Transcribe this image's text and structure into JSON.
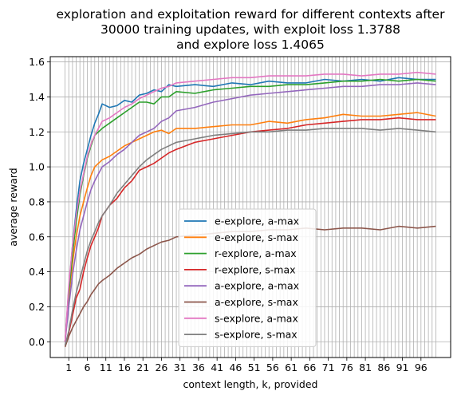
{
  "chart_data": {
    "type": "line",
    "title_lines": [
      "exploration and exploitation reward for different contexts after",
      "30000 training updates, with exploit loss 1.3788",
      "and explore loss 1.4065"
    ],
    "xlabel": "context length, k, provided",
    "ylabel": "average reward",
    "xlim": [
      -4,
      104
    ],
    "ylim": [
      -0.09,
      1.63
    ],
    "xticks": [
      1,
      6,
      11,
      16,
      21,
      26,
      31,
      36,
      41,
      46,
      51,
      56,
      61,
      66,
      71,
      76,
      81,
      86,
      91,
      96
    ],
    "yticks": [
      0.0,
      0.2,
      0.4,
      0.6,
      0.8,
      1.0,
      1.2,
      1.4,
      1.6
    ],
    "ytick_labels": [
      "0.0",
      "0.2",
      "0.4",
      "0.6",
      "0.8",
      "1.0",
      "1.2",
      "1.4",
      "1.6"
    ],
    "grid": true,
    "legend_position": "lower-center",
    "series": [
      {
        "name": "e-explore, a-max",
        "color": "#1f77b4",
        "points": [
          [
            0,
            0.0
          ],
          [
            1,
            0.3
          ],
          [
            2,
            0.55
          ],
          [
            3,
            0.75
          ],
          [
            4,
            0.92
          ],
          [
            5,
            1.02
          ],
          [
            6,
            1.1
          ],
          [
            7,
            1.18
          ],
          [
            8,
            1.25
          ],
          [
            9,
            1.3
          ],
          [
            10,
            1.36
          ],
          [
            12,
            1.34
          ],
          [
            14,
            1.35
          ],
          [
            16,
            1.38
          ],
          [
            18,
            1.37
          ],
          [
            20,
            1.41
          ],
          [
            22,
            1.42
          ],
          [
            24,
            1.44
          ],
          [
            26,
            1.43
          ],
          [
            28,
            1.47
          ],
          [
            30,
            1.46
          ],
          [
            35,
            1.47
          ],
          [
            40,
            1.46
          ],
          [
            45,
            1.48
          ],
          [
            50,
            1.47
          ],
          [
            55,
            1.49
          ],
          [
            60,
            1.48
          ],
          [
            65,
            1.48
          ],
          [
            70,
            1.5
          ],
          [
            75,
            1.49
          ],
          [
            80,
            1.5
          ],
          [
            85,
            1.49
          ],
          [
            90,
            1.51
          ],
          [
            95,
            1.5
          ],
          [
            100,
            1.5
          ]
        ]
      },
      {
        "name": "e-explore, s-max",
        "color": "#ff7f0e",
        "points": [
          [
            0,
            0.0
          ],
          [
            1,
            0.25
          ],
          [
            2,
            0.45
          ],
          [
            3,
            0.6
          ],
          [
            4,
            0.72
          ],
          [
            5,
            0.8
          ],
          [
            6,
            0.88
          ],
          [
            7,
            0.95
          ],
          [
            8,
            1.0
          ],
          [
            9,
            1.02
          ],
          [
            10,
            1.04
          ],
          [
            12,
            1.06
          ],
          [
            14,
            1.09
          ],
          [
            16,
            1.12
          ],
          [
            18,
            1.14
          ],
          [
            20,
            1.16
          ],
          [
            22,
            1.18
          ],
          [
            24,
            1.2
          ],
          [
            26,
            1.21
          ],
          [
            28,
            1.19
          ],
          [
            30,
            1.22
          ],
          [
            35,
            1.22
          ],
          [
            40,
            1.23
          ],
          [
            45,
            1.24
          ],
          [
            50,
            1.24
          ],
          [
            55,
            1.26
          ],
          [
            60,
            1.25
          ],
          [
            65,
            1.27
          ],
          [
            70,
            1.28
          ],
          [
            75,
            1.3
          ],
          [
            80,
            1.29
          ],
          [
            85,
            1.29
          ],
          [
            90,
            1.3
          ],
          [
            95,
            1.31
          ],
          [
            100,
            1.29
          ]
        ]
      },
      {
        "name": "r-explore, a-max",
        "color": "#2ca02c",
        "points": [
          [
            0,
            0.0
          ],
          [
            1,
            0.28
          ],
          [
            2,
            0.5
          ],
          [
            3,
            0.68
          ],
          [
            4,
            0.84
          ],
          [
            5,
            0.95
          ],
          [
            6,
            1.05
          ],
          [
            7,
            1.12
          ],
          [
            8,
            1.18
          ],
          [
            9,
            1.2
          ],
          [
            10,
            1.22
          ],
          [
            12,
            1.25
          ],
          [
            14,
            1.28
          ],
          [
            16,
            1.31
          ],
          [
            18,
            1.34
          ],
          [
            20,
            1.37
          ],
          [
            22,
            1.37
          ],
          [
            24,
            1.36
          ],
          [
            26,
            1.4
          ],
          [
            28,
            1.4
          ],
          [
            30,
            1.43
          ],
          [
            35,
            1.42
          ],
          [
            40,
            1.44
          ],
          [
            45,
            1.45
          ],
          [
            50,
            1.46
          ],
          [
            55,
            1.46
          ],
          [
            60,
            1.47
          ],
          [
            65,
            1.47
          ],
          [
            70,
            1.48
          ],
          [
            75,
            1.49
          ],
          [
            80,
            1.49
          ],
          [
            85,
            1.5
          ],
          [
            90,
            1.49
          ],
          [
            95,
            1.5
          ],
          [
            100,
            1.49
          ]
        ]
      },
      {
        "name": "r-explore, s-max",
        "color": "#d62728",
        "points": [
          [
            0,
            -0.02
          ],
          [
            1,
            0.05
          ],
          [
            2,
            0.15
          ],
          [
            3,
            0.25
          ],
          [
            4,
            0.3
          ],
          [
            5,
            0.4
          ],
          [
            6,
            0.48
          ],
          [
            7,
            0.55
          ],
          [
            8,
            0.6
          ],
          [
            9,
            0.65
          ],
          [
            10,
            0.72
          ],
          [
            12,
            0.78
          ],
          [
            14,
            0.82
          ],
          [
            16,
            0.88
          ],
          [
            18,
            0.92
          ],
          [
            20,
            0.98
          ],
          [
            22,
            1.0
          ],
          [
            24,
            1.02
          ],
          [
            26,
            1.05
          ],
          [
            28,
            1.08
          ],
          [
            30,
            1.1
          ],
          [
            35,
            1.14
          ],
          [
            40,
            1.16
          ],
          [
            45,
            1.18
          ],
          [
            50,
            1.2
          ],
          [
            55,
            1.21
          ],
          [
            60,
            1.22
          ],
          [
            65,
            1.24
          ],
          [
            70,
            1.25
          ],
          [
            75,
            1.26
          ],
          [
            80,
            1.27
          ],
          [
            85,
            1.27
          ],
          [
            90,
            1.28
          ],
          [
            95,
            1.27
          ],
          [
            100,
            1.27
          ]
        ]
      },
      {
        "name": "a-explore, a-max",
        "color": "#9467bd",
        "points": [
          [
            0,
            0.0
          ],
          [
            1,
            0.2
          ],
          [
            2,
            0.38
          ],
          [
            3,
            0.52
          ],
          [
            4,
            0.64
          ],
          [
            5,
            0.72
          ],
          [
            6,
            0.8
          ],
          [
            7,
            0.87
          ],
          [
            8,
            0.92
          ],
          [
            9,
            0.96
          ],
          [
            10,
            1.0
          ],
          [
            12,
            1.03
          ],
          [
            14,
            1.07
          ],
          [
            16,
            1.1
          ],
          [
            18,
            1.14
          ],
          [
            20,
            1.18
          ],
          [
            22,
            1.2
          ],
          [
            24,
            1.22
          ],
          [
            26,
            1.26
          ],
          [
            28,
            1.28
          ],
          [
            30,
            1.32
          ],
          [
            35,
            1.34
          ],
          [
            40,
            1.37
          ],
          [
            45,
            1.39
          ],
          [
            50,
            1.41
          ],
          [
            55,
            1.42
          ],
          [
            60,
            1.43
          ],
          [
            65,
            1.44
          ],
          [
            70,
            1.45
          ],
          [
            75,
            1.46
          ],
          [
            80,
            1.46
          ],
          [
            85,
            1.47
          ],
          [
            90,
            1.47
          ],
          [
            95,
            1.48
          ],
          [
            100,
            1.47
          ]
        ]
      },
      {
        "name": "a-explore, s-max",
        "color": "#8c564b",
        "points": [
          [
            0,
            -0.03
          ],
          [
            1,
            0.03
          ],
          [
            2,
            0.08
          ],
          [
            3,
            0.12
          ],
          [
            4,
            0.16
          ],
          [
            5,
            0.2
          ],
          [
            6,
            0.23
          ],
          [
            7,
            0.27
          ],
          [
            8,
            0.3
          ],
          [
            9,
            0.33
          ],
          [
            10,
            0.35
          ],
          [
            12,
            0.38
          ],
          [
            14,
            0.42
          ],
          [
            16,
            0.45
          ],
          [
            18,
            0.48
          ],
          [
            20,
            0.5
          ],
          [
            22,
            0.53
          ],
          [
            24,
            0.55
          ],
          [
            26,
            0.57
          ],
          [
            28,
            0.58
          ],
          [
            30,
            0.6
          ],
          [
            35,
            0.61
          ],
          [
            40,
            0.62
          ],
          [
            45,
            0.63
          ],
          [
            50,
            0.63
          ],
          [
            55,
            0.64
          ],
          [
            60,
            0.64
          ],
          [
            65,
            0.65
          ],
          [
            70,
            0.64
          ],
          [
            75,
            0.65
          ],
          [
            80,
            0.65
          ],
          [
            85,
            0.64
          ],
          [
            90,
            0.66
          ],
          [
            95,
            0.65
          ],
          [
            100,
            0.66
          ]
        ]
      },
      {
        "name": "s-explore, a-max",
        "color": "#e377c2",
        "points": [
          [
            0,
            0.0
          ],
          [
            1,
            0.32
          ],
          [
            2,
            0.55
          ],
          [
            3,
            0.72
          ],
          [
            4,
            0.86
          ],
          [
            5,
            0.96
          ],
          [
            6,
            1.06
          ],
          [
            7,
            1.13
          ],
          [
            8,
            1.18
          ],
          [
            9,
            1.22
          ],
          [
            10,
            1.26
          ],
          [
            12,
            1.28
          ],
          [
            14,
            1.31
          ],
          [
            16,
            1.34
          ],
          [
            18,
            1.36
          ],
          [
            20,
            1.39
          ],
          [
            22,
            1.41
          ],
          [
            24,
            1.43
          ],
          [
            26,
            1.45
          ],
          [
            28,
            1.46
          ],
          [
            30,
            1.48
          ],
          [
            35,
            1.49
          ],
          [
            40,
            1.5
          ],
          [
            45,
            1.51
          ],
          [
            50,
            1.51
          ],
          [
            55,
            1.52
          ],
          [
            60,
            1.52
          ],
          [
            65,
            1.52
          ],
          [
            70,
            1.53
          ],
          [
            75,
            1.53
          ],
          [
            80,
            1.52
          ],
          [
            85,
            1.53
          ],
          [
            90,
            1.53
          ],
          [
            95,
            1.54
          ],
          [
            100,
            1.53
          ]
        ]
      },
      {
        "name": "s-explore, s-max",
        "color": "#7f7f7f",
        "points": [
          [
            0,
            -0.02
          ],
          [
            1,
            0.06
          ],
          [
            2,
            0.18
          ],
          [
            3,
            0.28
          ],
          [
            4,
            0.36
          ],
          [
            5,
            0.44
          ],
          [
            6,
            0.52
          ],
          [
            7,
            0.58
          ],
          [
            8,
            0.63
          ],
          [
            9,
            0.68
          ],
          [
            10,
            0.72
          ],
          [
            12,
            0.78
          ],
          [
            14,
            0.85
          ],
          [
            16,
            0.9
          ],
          [
            18,
            0.95
          ],
          [
            20,
            1.0
          ],
          [
            22,
            1.04
          ],
          [
            24,
            1.07
          ],
          [
            26,
            1.1
          ],
          [
            28,
            1.12
          ],
          [
            30,
            1.14
          ],
          [
            35,
            1.16
          ],
          [
            40,
            1.18
          ],
          [
            45,
            1.19
          ],
          [
            50,
            1.2
          ],
          [
            55,
            1.2
          ],
          [
            60,
            1.21
          ],
          [
            65,
            1.21
          ],
          [
            70,
            1.22
          ],
          [
            75,
            1.22
          ],
          [
            80,
            1.22
          ],
          [
            85,
            1.21
          ],
          [
            90,
            1.22
          ],
          [
            95,
            1.21
          ],
          [
            100,
            1.2
          ]
        ]
      }
    ]
  }
}
